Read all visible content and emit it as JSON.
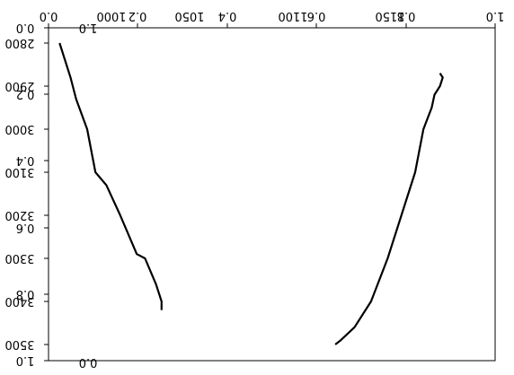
{
  "chart_data": [
    {
      "type": "line",
      "title": "",
      "xlabel": "",
      "ylabel": "",
      "xlim": [
        0.0,
        1.0
      ],
      "ylim": [
        1.0,
        0.0
      ],
      "x_ticks": [
        "0.0",
        "0.2",
        "0.4",
        "0.6",
        "0.8",
        "1.0"
      ],
      "y_ticks": [
        "0.0",
        "0.2",
        "0.4",
        "0.6",
        "0.8",
        "1.0"
      ],
      "orientation": "flipped-horizontal-and-vertical",
      "grid": false
    },
    {
      "type": "line",
      "title": "",
      "xlabel": "",
      "ylabel": "",
      "xlim": [
        0.0,
        1.0
      ],
      "ylim": [
        2800,
        2500
      ],
      "x_ticks": [
        "0.0",
        "1.0"
      ],
      "y_ticks": [
        "2800",
        "2900",
        "3000",
        "3100",
        "3200",
        "3300",
        "3400",
        "3500"
      ],
      "secondary_x_ticks": [
        "1000",
        "1050",
        "1100",
        "1150"
      ],
      "orientation": "flipped-horizontal-and-vertical",
      "grid": false,
      "series": [
        {
          "x": [
            1148,
            1144,
            1142,
            1138,
            1135,
            1131,
            1126,
            1120,
            1117,
            1113,
            1111,
            1111
          ],
          "y": [
            2800,
            2880,
            2930,
            3000,
            3100,
            3130,
            3200,
            3290,
            3300,
            3360,
            3400,
            3420
          ],
          "values": [
            1148,
            1144,
            1142,
            1138,
            1135,
            1131,
            1126,
            1120,
            1117,
            1113,
            1111,
            1111
          ]
        },
        {
          "x": [
            1010,
            1009,
            1010,
            1012,
            1013,
            1016,
            1019,
            1024,
            1029,
            1035,
            1041,
            1046,
            1048
          ],
          "y": [
            2870,
            2880,
            2900,
            2920,
            2950,
            3000,
            3100,
            3200,
            3300,
            3400,
            3460,
            3490,
            3500
          ],
          "values": [
            1010,
            1009,
            1010,
            1012,
            1013,
            1016,
            1019,
            1024,
            1029,
            1035,
            1041,
            1046,
            1048
          ]
        }
      ]
    }
  ],
  "labels": {
    "top_tick_1": "0.0",
    "top_tick_2": "0.2",
    "top_tick_3": "0.4",
    "top_tick_4": "0.6",
    "top_tick_5": "0.8",
    "top_tick_6": "1.0",
    "top_tick_7": "1000",
    "top_tick_8": "1050",
    "top_tick_9": "1100",
    "top_tick_10": "1150",
    "left_tick_1": "0.0",
    "left_tick_2": "0.2",
    "left_tick_3": "0.4",
    "left_tick_4": "0.6",
    "left_tick_5": "0.8",
    "left_tick_6": "1.0",
    "left_tick_7": "2800",
    "left_tick_8": "2900",
    "left_tick_9": "3000",
    "left_tick_10": "3100",
    "left_tick_11": "3200",
    "left_tick_12": "3300",
    "left_tick_13": "3400",
    "left_tick_14": "3500",
    "bottom_mirror_1": "0.0",
    "top_mirror_1": "1.0"
  }
}
